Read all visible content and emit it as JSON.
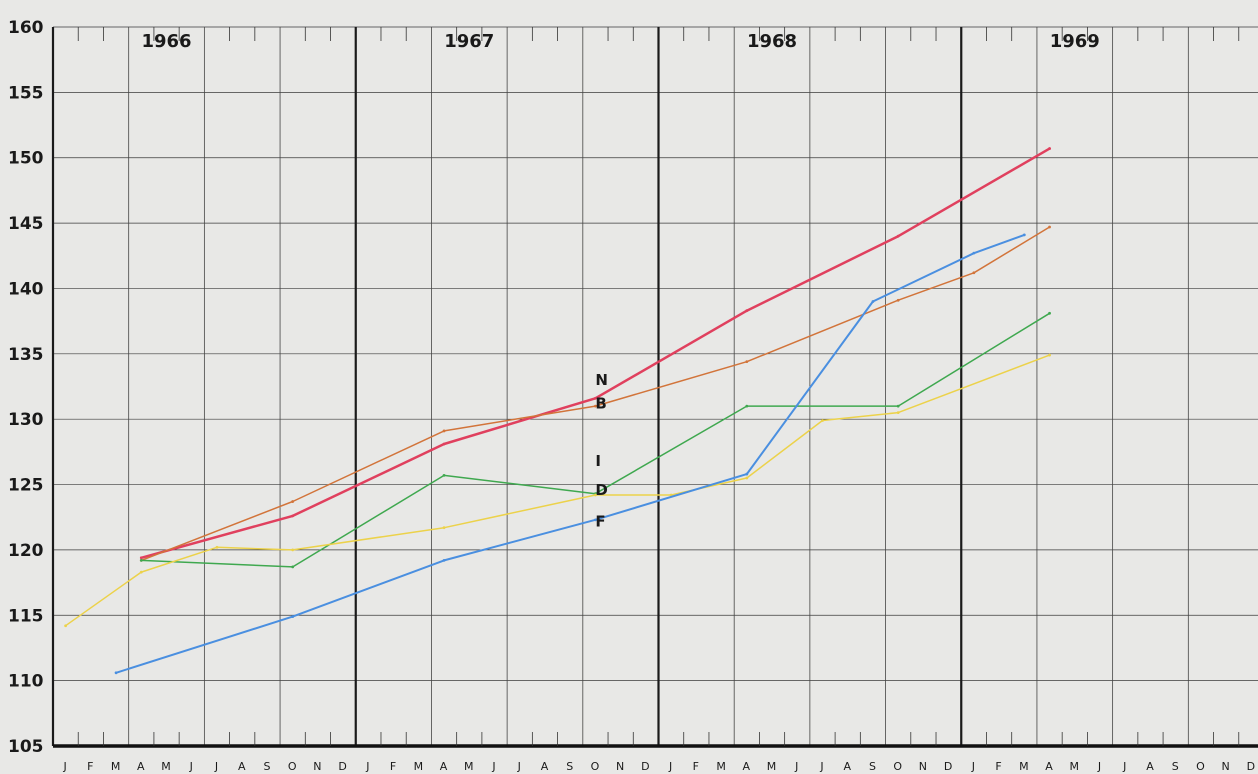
{
  "chart_data": {
    "type": "line",
    "ylim": [
      105,
      160
    ],
    "yticks": [
      160,
      155,
      150,
      145,
      140,
      135,
      130,
      125,
      120,
      115,
      110,
      105
    ],
    "years": [
      "1966",
      "1967",
      "1968",
      "1969"
    ],
    "month_labels": [
      "J",
      "F",
      "M",
      "A",
      "M",
      "J",
      "J",
      "A",
      "S",
      "O",
      "N",
      "D",
      "J",
      "F",
      "M",
      "A",
      "M",
      "J",
      "J",
      "A",
      "S",
      "O",
      "N",
      "D",
      "J",
      "F",
      "M",
      "A",
      "M",
      "J",
      "J",
      "A",
      "S",
      "O",
      "N",
      "D",
      "J",
      "F",
      "M",
      "A",
      "M",
      "J",
      "J",
      "A",
      "S",
      "O",
      "N",
      "D"
    ],
    "grid": true,
    "series": [
      {
        "name": "N",
        "color": "#e0405e",
        "width": 2.5,
        "points": [
          [
            "1966-04",
            119.4
          ],
          [
            "1966-10",
            122.6
          ],
          [
            "1967-04",
            128.1
          ],
          [
            "1967-10",
            131.6
          ],
          [
            "1968-04",
            138.3
          ],
          [
            "1968-10",
            144.0
          ],
          [
            "1969-04",
            150.7
          ]
        ]
      },
      {
        "name": "B",
        "color": "#d2743a",
        "width": 1.5,
        "points": [
          [
            "1966-04",
            119.2
          ],
          [
            "1966-10",
            123.7
          ],
          [
            "1967-04",
            129.1
          ],
          [
            "1967-10",
            131.0
          ],
          [
            "1968-04",
            134.4
          ],
          [
            "1968-10",
            139.1
          ],
          [
            "1969-01",
            141.2
          ],
          [
            "1969-04",
            144.7
          ]
        ]
      },
      {
        "name": "I",
        "color": "#3fa84f",
        "width": 1.5,
        "points": [
          [
            "1966-04",
            119.2
          ],
          [
            "1966-10",
            118.7
          ],
          [
            "1967-04",
            125.7
          ],
          [
            "1967-10",
            124.3
          ],
          [
            "1968-04",
            131.0
          ],
          [
            "1968-10",
            131.0
          ],
          [
            "1969-04",
            138.1
          ]
        ]
      },
      {
        "name": "D",
        "color": "#ecd24a",
        "width": 1.5,
        "points": [
          [
            "1966-01",
            114.2
          ],
          [
            "1966-04",
            118.3
          ],
          [
            "1966-07",
            120.2
          ],
          [
            "1966-10",
            120.0
          ],
          [
            "1967-04",
            121.7
          ],
          [
            "1967-10",
            124.2
          ],
          [
            "1968-01",
            124.2
          ],
          [
            "1968-04",
            125.5
          ],
          [
            "1968-07",
            129.9
          ],
          [
            "1968-10",
            130.5
          ],
          [
            "1969-04",
            134.9
          ]
        ]
      },
      {
        "name": "F",
        "color": "#4a8fe0",
        "width": 2,
        "points": [
          [
            "1966-03",
            110.6
          ],
          [
            "1966-10",
            114.9
          ],
          [
            "1967-04",
            119.2
          ],
          [
            "1967-10",
            122.3
          ],
          [
            "1968-04",
            125.8
          ],
          [
            "1968-09",
            139.0
          ],
          [
            "1969-01",
            142.7
          ],
          [
            "1969-03",
            144.1
          ]
        ]
      }
    ],
    "series_labels": [
      {
        "text": "N",
        "x": "1967-10",
        "y": 132.6
      },
      {
        "text": "B",
        "x": "1967-10",
        "y": 130.8
      },
      {
        "text": "I",
        "x": "1967-10",
        "y": 126.4
      },
      {
        "text": "D",
        "x": "1967-10",
        "y": 124.2
      },
      {
        "text": "F",
        "x": "1967-10",
        "y": 121.8
      }
    ]
  }
}
